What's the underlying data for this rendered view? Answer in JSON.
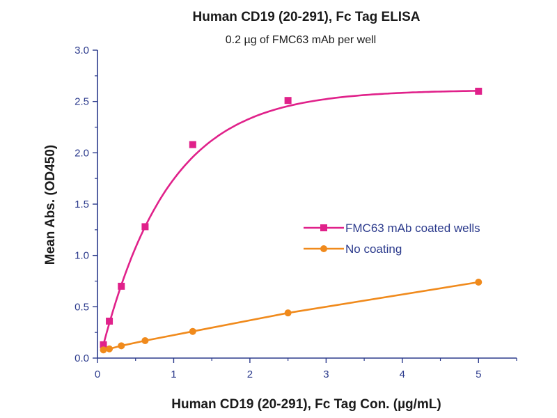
{
  "chart_data": {
    "type": "line",
    "title": "Human CD19 (20-291), Fc Tag ELISA",
    "subtitle": "0.2 µg of FMC63 mAb per well",
    "xlabel": "Human CD19 (20-291), Fc Tag Con. (µg/mL)",
    "ylabel": "Mean Abs. (OD450)",
    "xlim": [
      0,
      5.5
    ],
    "ylim": [
      0,
      3.0
    ],
    "xticks": [
      0,
      1,
      2,
      3,
      4,
      5
    ],
    "yticks": [
      0.0,
      0.5,
      1.0,
      1.5,
      2.0,
      2.5,
      3.0
    ],
    "xtick_labels": [
      "0",
      "1",
      "2",
      "3",
      "4",
      "5"
    ],
    "ytick_labels": [
      "0.0",
      "0.5",
      "1.0",
      "1.5",
      "2.0",
      "2.5",
      "3.0"
    ],
    "grid": false,
    "legend_position": "center-right",
    "series": [
      {
        "name": "FMC63 mAb coated wells",
        "color": "#e0218a",
        "marker": "square",
        "x": [
          0.078,
          0.156,
          0.313,
          0.625,
          1.25,
          2.5,
          5.0
        ],
        "y": [
          0.13,
          0.36,
          0.7,
          1.28,
          2.08,
          2.51,
          2.6
        ]
      },
      {
        "name": "No coating",
        "color": "#f08a1c",
        "marker": "circle",
        "x": [
          0.078,
          0.156,
          0.313,
          0.625,
          1.25,
          2.5,
          5.0
        ],
        "y": [
          0.08,
          0.09,
          0.12,
          0.17,
          0.26,
          0.44,
          0.74
        ]
      }
    ],
    "axis_color": "#2b3a8c"
  }
}
